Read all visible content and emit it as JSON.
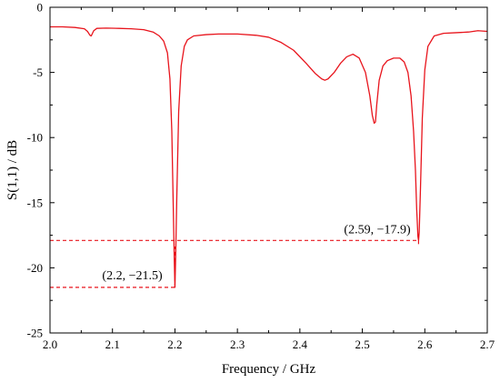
{
  "chart_data": {
    "type": "line",
    "title": "",
    "xlabel": "Frequency / GHz",
    "ylabel": "S(1,1) / dB",
    "xlim": [
      2.0,
      2.7
    ],
    "ylim": [
      -25,
      0
    ],
    "grid": false,
    "x_ticks": [
      2.0,
      2.1,
      2.2,
      2.3,
      2.4,
      2.5,
      2.6,
      2.7
    ],
    "x_tick_labels": [
      "2.0",
      "2.1",
      "2.2",
      "2.3",
      "2.4",
      "2.5",
      "2.6",
      "2.7"
    ],
    "y_ticks": [
      0,
      -5,
      -10,
      -15,
      -20,
      -25
    ],
    "y_tick_labels": [
      "0",
      "-5",
      "-10",
      "-15",
      "-20",
      "-25"
    ],
    "colors": {
      "series": "#e8141c",
      "axes": "#000000"
    },
    "series": [
      {
        "x": [
          2.0,
          2.02,
          2.04,
          2.055,
          2.06,
          2.064,
          2.066,
          2.07,
          2.075,
          2.09,
          2.11,
          2.13,
          2.15,
          2.165,
          2.175,
          2.182,
          2.188,
          2.192,
          2.195,
          2.197,
          2.199,
          2.2,
          2.201,
          2.203,
          2.206,
          2.21,
          2.215,
          2.22,
          2.23,
          2.25,
          2.27,
          2.3,
          2.33,
          2.35,
          2.37,
          2.39,
          2.41,
          2.425,
          2.435,
          2.44,
          2.445,
          2.455,
          2.465,
          2.475,
          2.485,
          2.495,
          2.505,
          2.512,
          2.516,
          2.519,
          2.521,
          2.523,
          2.527,
          2.533,
          2.54,
          2.55,
          2.56,
          2.567,
          2.573,
          2.578,
          2.582,
          2.585,
          2.587,
          2.589,
          2.59,
          2.591,
          2.593,
          2.596,
          2.6,
          2.605,
          2.615,
          2.63,
          2.65,
          2.67,
          2.685,
          2.7
        ],
        "y": [
          -1.5,
          -1.5,
          -1.55,
          -1.65,
          -1.85,
          -2.15,
          -2.2,
          -1.8,
          -1.62,
          -1.6,
          -1.62,
          -1.65,
          -1.72,
          -1.9,
          -2.2,
          -2.6,
          -3.5,
          -5.5,
          -9.5,
          -14.5,
          -19.5,
          -21.5,
          -19.5,
          -14.5,
          -8.0,
          -4.5,
          -3.0,
          -2.5,
          -2.2,
          -2.1,
          -2.05,
          -2.05,
          -2.15,
          -2.3,
          -2.7,
          -3.3,
          -4.3,
          -5.1,
          -5.5,
          -5.6,
          -5.5,
          -5.0,
          -4.3,
          -3.8,
          -3.6,
          -3.9,
          -5.0,
          -6.8,
          -8.3,
          -8.9,
          -8.8,
          -7.5,
          -5.6,
          -4.5,
          -4.1,
          -3.9,
          -3.9,
          -4.2,
          -5.0,
          -6.8,
          -9.5,
          -12.5,
          -15.5,
          -17.6,
          -17.9,
          -17.3,
          -14.0,
          -8.5,
          -4.8,
          -3.0,
          -2.2,
          -2.0,
          -1.95,
          -1.9,
          -1.8,
          -1.85
        ]
      }
    ],
    "annotations": [
      {
        "text": "(2.2, −21.5)",
        "x": 2.2,
        "y": -21.5
      },
      {
        "text": "(2.59, −17.9)",
        "x": 2.59,
        "y": -17.9
      }
    ]
  }
}
